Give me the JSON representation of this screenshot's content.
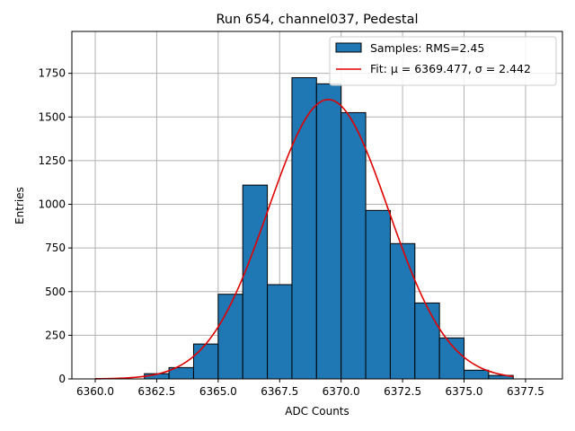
{
  "chart_data": {
    "type": "bar",
    "title": "Run 654, channel037, Pedestal",
    "xlabel": "ADC Counts",
    "ylabel": "Entries",
    "xlim": [
      6359.05,
      6379.0
    ],
    "ylim": [
      0,
      1990
    ],
    "grid": true,
    "legend_position": "top-right",
    "x_ticks": [
      6360.0,
      6362.5,
      6365.0,
      6367.5,
      6370.0,
      6372.5,
      6375.0,
      6377.5
    ],
    "x_tick_labels": [
      "6360.0",
      "6362.5",
      "6365.0",
      "6367.5",
      "6370.0",
      "6372.5",
      "6375.0",
      "6377.5"
    ],
    "y_ticks": [
      0,
      250,
      500,
      750,
      1000,
      1250,
      1500,
      1750
    ],
    "y_tick_labels": [
      "0",
      "250",
      "500",
      "750",
      "1000",
      "1250",
      "1500",
      "1750"
    ],
    "bin_width": 1,
    "bins": [
      {
        "left": 6362,
        "value": 30
      },
      {
        "left": 6363,
        "value": 65
      },
      {
        "left": 6364,
        "value": 200
      },
      {
        "left": 6365,
        "value": 485
      },
      {
        "left": 6366,
        "value": 1110
      },
      {
        "left": 6367,
        "value": 540
      },
      {
        "left": 6368,
        "value": 1725
      },
      {
        "left": 6369,
        "value": 1690
      },
      {
        "left": 6370,
        "value": 1525
      },
      {
        "left": 6371,
        "value": 965
      },
      {
        "left": 6372,
        "value": 775
      },
      {
        "left": 6373,
        "value": 435
      },
      {
        "left": 6374,
        "value": 235
      },
      {
        "left": 6375,
        "value": 50
      },
      {
        "left": 6376,
        "value": 20
      }
    ],
    "fit": {
      "mu": 6369.477,
      "sigma": 2.442,
      "amplitude": 1600,
      "x_start": 6360.0,
      "x_end": 6377.0
    },
    "colors": {
      "bar_fill": "#1f77b4",
      "bar_edge": "#000000",
      "fit_line": "#e00000",
      "grid": "#b0b0b0"
    },
    "legend": [
      {
        "label": "Samples: RMS=2.45",
        "kind": "patch"
      },
      {
        "label": "Fit: μ = 6369.477, σ = 2.442",
        "kind": "line"
      }
    ]
  }
}
